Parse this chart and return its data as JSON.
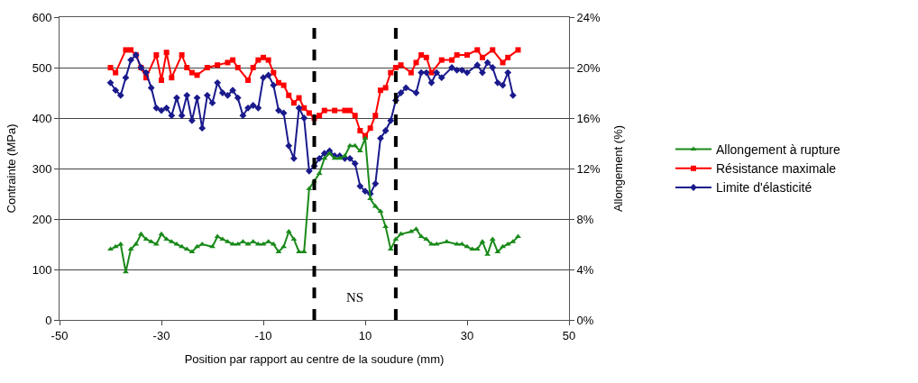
{
  "chart_data": {
    "type": "line",
    "xlabel": "Position par rapport au centre de la soudure (mm)",
    "ylabel": "Contrainte (MPa)",
    "y2label": "Allongement (%)",
    "xlim": [
      -50,
      50
    ],
    "xticks": [
      -50,
      -30,
      -10,
      10,
      30,
      50
    ],
    "ylim": [
      0,
      600
    ],
    "yticks": [
      0,
      100,
      200,
      300,
      400,
      500,
      600
    ],
    "y2lim": [
      0,
      24
    ],
    "y2ticks": [
      {
        "value": 0,
        "label": "0%"
      },
      {
        "value": 4,
        "label": "4%"
      },
      {
        "value": 8,
        "label": "8%"
      },
      {
        "value": 12,
        "label": "12%"
      },
      {
        "value": 16,
        "label": "16%"
      },
      {
        "value": 20,
        "label": "20%"
      },
      {
        "value": 24,
        "label": "24%"
      }
    ],
    "grid": "y",
    "legend": "right",
    "series": [
      {
        "name": "Allongement à rupture",
        "color": "#1a8a1a",
        "axis": "y2",
        "marker": "triangle",
        "x": [
          -40,
          -39,
          -38,
          -37,
          -36,
          -35,
          -34,
          -33,
          -32,
          -31,
          -30,
          -29,
          -28,
          -27,
          -26,
          -25,
          -24,
          -23,
          -22,
          -20,
          -19,
          -18,
          -17,
          -16,
          -15,
          -14,
          -13,
          -12,
          -11,
          -10,
          -9,
          -8,
          -7,
          -6,
          -5,
          -4,
          -3,
          -2,
          -1,
          0,
          1,
          2,
          3,
          4,
          5,
          6,
          7,
          8,
          9,
          10,
          11,
          12,
          13,
          14,
          15,
          16,
          17,
          19,
          20,
          21,
          22,
          23,
          24,
          26,
          28,
          29,
          30,
          31,
          32,
          33,
          34,
          35,
          36,
          37,
          38,
          39,
          40
        ],
        "values": [
          5.6,
          5.8,
          6.0,
          3.8,
          5.6,
          6.0,
          6.8,
          6.4,
          6.2,
          6.0,
          6.8,
          6.4,
          6.2,
          6.0,
          5.8,
          5.6,
          5.4,
          5.8,
          6.0,
          5.8,
          6.6,
          6.4,
          6.2,
          6.0,
          6.0,
          6.2,
          6.0,
          6.2,
          6.0,
          6.0,
          6.2,
          6.0,
          5.4,
          5.8,
          7.0,
          6.4,
          5.4,
          5.4,
          10.4,
          11.0,
          11.6,
          12.8,
          13.2,
          12.8,
          12.8,
          13.0,
          13.8,
          13.8,
          13.4,
          14.4,
          9.6,
          9.0,
          8.6,
          7.4,
          5.6,
          6.4,
          6.8,
          7.0,
          7.2,
          6.6,
          6.4,
          6.0,
          6.0,
          6.2,
          6.0,
          6.0,
          5.8,
          5.6,
          5.6,
          6.2,
          5.2,
          6.4,
          5.4,
          5.8,
          6.0,
          6.2,
          6.6
        ]
      },
      {
        "name": "Résistance maximale",
        "color": "#ff0000",
        "marker": "square",
        "x": [
          -40,
          -39,
          -37,
          -36,
          -35,
          -34,
          -33,
          -31,
          -30,
          -29,
          -28,
          -26,
          -25,
          -24,
          -23,
          -21,
          -19,
          -17,
          -16,
          -15,
          -13,
          -12,
          -11,
          -10,
          -9,
          -8,
          -7,
          -6,
          -5,
          -4,
          -3,
          -2,
          -1,
          0,
          1,
          2,
          4,
          6,
          7,
          8,
          9,
          10,
          11,
          12,
          13,
          14,
          15,
          16,
          17,
          19,
          20,
          21,
          22,
          23,
          25,
          27,
          28,
          30,
          32,
          33,
          35,
          37,
          38,
          40
        ],
        "values": [
          500,
          490,
          535,
          535,
          525,
          500,
          480,
          525,
          475,
          530,
          480,
          525,
          500,
          490,
          485,
          500,
          505,
          510,
          515,
          500,
          475,
          500,
          515,
          520,
          515,
          490,
          470,
          465,
          445,
          430,
          440,
          420,
          410,
          400,
          405,
          415,
          415,
          415,
          415,
          405,
          375,
          365,
          380,
          405,
          455,
          460,
          490,
          500,
          505,
          490,
          510,
          525,
          520,
          490,
          515,
          515,
          525,
          525,
          535,
          520,
          535,
          510,
          520,
          535
        ]
      },
      {
        "name": "Limite d'élasticité",
        "color": "#1a1a8c",
        "marker": "diamond",
        "x": [
          -40,
          -39,
          -38,
          -37,
          -36,
          -35,
          -34,
          -33,
          -32,
          -31,
          -30,
          -29,
          -28,
          -27,
          -26,
          -25,
          -24,
          -23,
          -22,
          -21,
          -20,
          -19,
          -18,
          -17,
          -16,
          -15,
          -14,
          -13,
          -12,
          -11,
          -10,
          -9,
          -8,
          -7,
          -6,
          -5,
          -4,
          -3,
          -2,
          -1,
          0,
          1,
          2,
          3,
          4,
          5,
          6,
          7,
          8,
          9,
          10,
          11,
          12,
          13,
          14,
          15,
          16,
          17,
          18,
          20,
          21,
          22,
          23,
          24,
          25,
          27,
          28,
          29,
          30,
          32,
          33,
          34,
          35,
          36,
          37,
          38,
          39
        ],
        "values": [
          470,
          455,
          445,
          480,
          515,
          525,
          500,
          490,
          460,
          420,
          415,
          420,
          405,
          440,
          405,
          445,
          395,
          440,
          380,
          445,
          430,
          470,
          450,
          445,
          455,
          440,
          405,
          420,
          425,
          420,
          480,
          485,
          465,
          415,
          410,
          345,
          320,
          420,
          400,
          295,
          305,
          320,
          330,
          335,
          325,
          325,
          320,
          320,
          310,
          265,
          255,
          250,
          270,
          360,
          375,
          395,
          435,
          450,
          460,
          450,
          490,
          490,
          470,
          490,
          480,
          500,
          495,
          495,
          490,
          505,
          490,
          510,
          500,
          470,
          465,
          490,
          445
        ]
      }
    ],
    "ref_lines": [
      {
        "axis": "x",
        "value": 0,
        "color": "#000000",
        "line_style": "dashed"
      },
      {
        "axis": "x",
        "value": 16,
        "color": "#000000",
        "line_style": "dashed"
      }
    ],
    "annotations": [
      {
        "text": "NS",
        "x": 8,
        "y": 45
      }
    ]
  }
}
